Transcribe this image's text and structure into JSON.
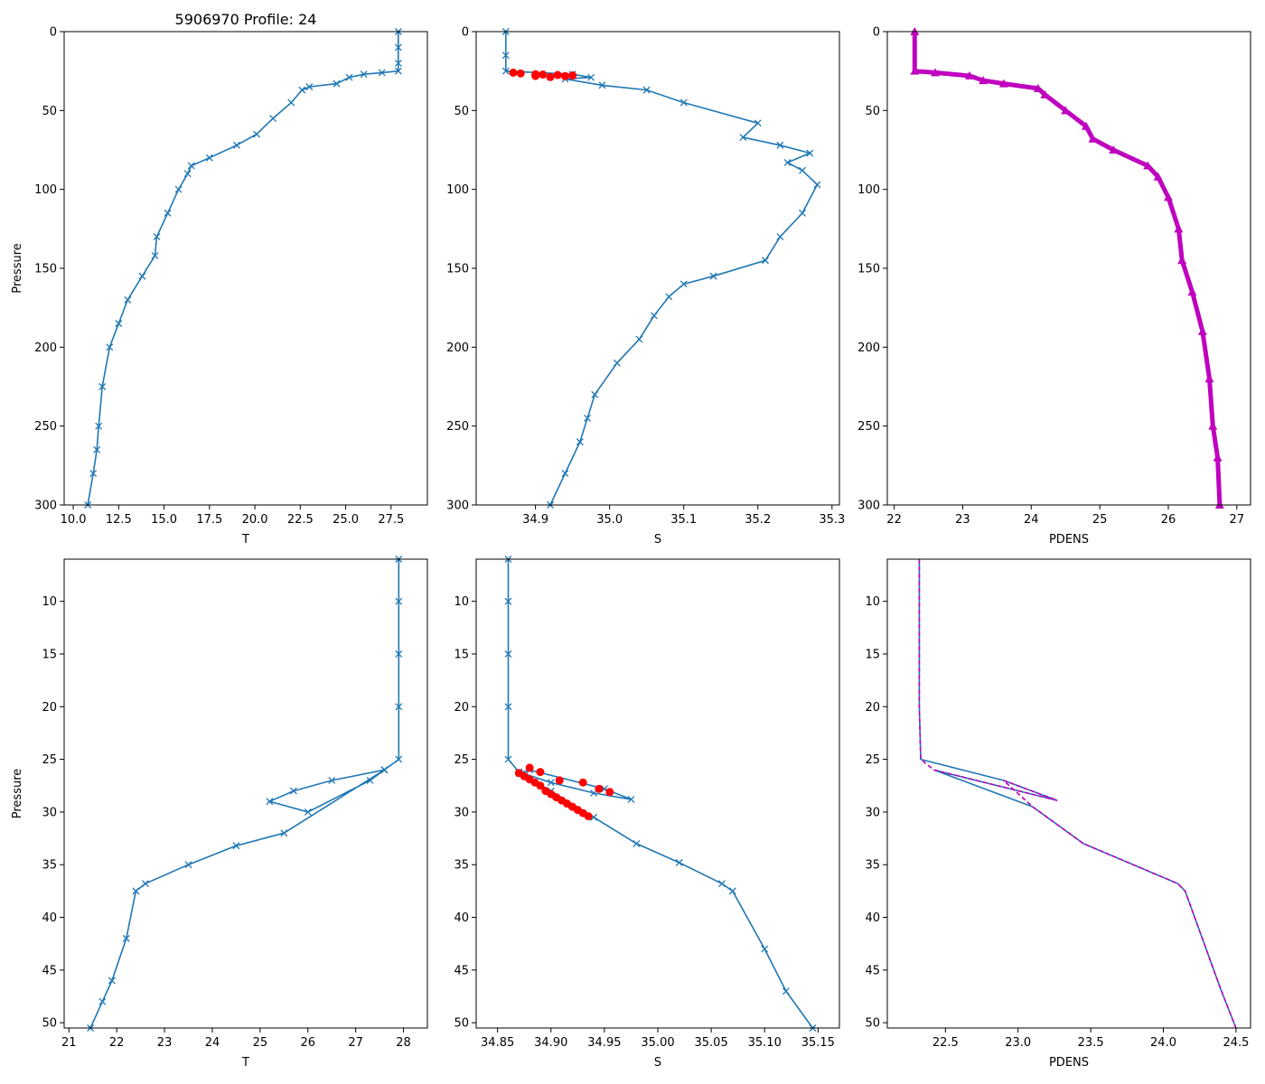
{
  "figure_title": "5906970 Profile: 24",
  "colors": {
    "series": "#1f77b4",
    "flagged": "#ff0000",
    "density": "#bf00bf"
  },
  "chart_data": [
    {
      "id": "top-temperature",
      "type": "line",
      "xlabel": "T",
      "ylabel": "Pressure",
      "title": "5906970 Profile: 24",
      "xlim": [
        9.5,
        29.5
      ],
      "ylim": [
        300,
        0
      ],
      "xticks": [
        10.0,
        12.5,
        15.0,
        17.5,
        20.0,
        22.5,
        25.0,
        27.5
      ],
      "xtick_labels": [
        "10.0",
        "12.5",
        "15.0",
        "17.5",
        "20.0",
        "22.5",
        "25.0",
        "27.5"
      ],
      "yticks": [
        0,
        50,
        100,
        150,
        200,
        250,
        300
      ],
      "ytick_labels": [
        "0",
        "50",
        "100",
        "150",
        "200",
        "250",
        "300"
      ],
      "series": [
        {
          "name": "T",
          "marker": "x",
          "color": "#1f77b4",
          "points": [
            [
              27.9,
              0
            ],
            [
              27.9,
              10
            ],
            [
              27.9,
              20
            ],
            [
              27.9,
              25
            ],
            [
              27.0,
              26
            ],
            [
              26.0,
              27
            ],
            [
              25.2,
              29
            ],
            [
              24.5,
              33
            ],
            [
              23.0,
              35
            ],
            [
              22.6,
              37
            ],
            [
              22.0,
              45
            ],
            [
              21.0,
              55
            ],
            [
              20.1,
              65
            ],
            [
              19.0,
              72
            ],
            [
              17.5,
              80
            ],
            [
              16.5,
              85
            ],
            [
              16.3,
              90
            ],
            [
              15.8,
              100
            ],
            [
              15.2,
              115
            ],
            [
              14.6,
              130
            ],
            [
              14.5,
              142
            ],
            [
              13.8,
              155
            ],
            [
              13.0,
              170
            ],
            [
              12.5,
              185
            ],
            [
              12.0,
              200
            ],
            [
              11.6,
              225
            ],
            [
              11.4,
              250
            ],
            [
              11.3,
              265
            ],
            [
              11.1,
              280
            ],
            [
              10.8,
              300
            ]
          ]
        }
      ]
    },
    {
      "id": "top-salinity",
      "type": "line",
      "xlabel": "S",
      "ylabel": "",
      "xlim": [
        34.82,
        35.31
      ],
      "ylim": [
        300,
        0
      ],
      "xticks": [
        34.9,
        35.0,
        35.1,
        35.2,
        35.3
      ],
      "xtick_labels": [
        "34.9",
        "35.0",
        "35.1",
        "35.2",
        "35.3"
      ],
      "yticks": [
        0,
        50,
        100,
        150,
        200,
        250,
        300
      ],
      "ytick_labels": [
        "0",
        "50",
        "100",
        "150",
        "200",
        "250",
        "300"
      ],
      "series": [
        {
          "name": "S",
          "marker": "x",
          "color": "#1f77b4",
          "points": [
            [
              34.86,
              0
            ],
            [
              34.86,
              15
            ],
            [
              34.86,
              25
            ],
            [
              34.95,
              27
            ],
            [
              34.975,
              29
            ],
            [
              34.94,
              30
            ],
            [
              34.99,
              34
            ],
            [
              35.05,
              37
            ],
            [
              35.1,
              45
            ],
            [
              35.2,
              58
            ],
            [
              35.18,
              67
            ],
            [
              35.23,
              72
            ],
            [
              35.27,
              77
            ],
            [
              35.24,
              83
            ],
            [
              35.26,
              88
            ],
            [
              35.28,
              97
            ],
            [
              35.26,
              115
            ],
            [
              35.23,
              130
            ],
            [
              35.21,
              145
            ],
            [
              35.14,
              155
            ],
            [
              35.1,
              160
            ],
            [
              35.08,
              168
            ],
            [
              35.06,
              180
            ],
            [
              35.04,
              195
            ],
            [
              35.01,
              210
            ],
            [
              34.98,
              230
            ],
            [
              34.97,
              245
            ],
            [
              34.96,
              260
            ],
            [
              34.94,
              280
            ],
            [
              34.92,
              300
            ]
          ]
        },
        {
          "name": "flagged S",
          "marker": "o",
          "color": "#ff0000",
          "points": [
            [
              34.87,
              26
            ],
            [
              34.88,
              26.5
            ],
            [
              34.9,
              27
            ],
            [
              34.91,
              27.2
            ],
            [
              34.93,
              27.5
            ],
            [
              34.95,
              27.8
            ],
            [
              34.94,
              28.2
            ],
            [
              34.92,
              28.8
            ],
            [
              34.9,
              28.1
            ]
          ]
        }
      ]
    },
    {
      "id": "top-density",
      "type": "line",
      "xlabel": "PDENS",
      "ylabel": "",
      "xlim": [
        21.9,
        27.2
      ],
      "ylim": [
        300,
        0
      ],
      "xticks": [
        22,
        23,
        24,
        25,
        26,
        27
      ],
      "xtick_labels": [
        "22",
        "23",
        "24",
        "25",
        "26",
        "27"
      ],
      "yticks": [
        0,
        50,
        100,
        150,
        200,
        250,
        300
      ],
      "ytick_labels": [
        "0",
        "50",
        "100",
        "150",
        "200",
        "250",
        "300"
      ],
      "series": [
        {
          "name": "PDENS",
          "marker": "^",
          "color": "#bf00bf",
          "points": [
            [
              22.3,
              0
            ],
            [
              22.3,
              25
            ],
            [
              22.6,
              26
            ],
            [
              23.1,
              28
            ],
            [
              23.3,
              31
            ],
            [
              23.6,
              33
            ],
            [
              24.1,
              36
            ],
            [
              24.2,
              40
            ],
            [
              24.5,
              50
            ],
            [
              24.8,
              60
            ],
            [
              24.9,
              68
            ],
            [
              25.2,
              75
            ],
            [
              25.7,
              85
            ],
            [
              25.85,
              92
            ],
            [
              26.0,
              105
            ],
            [
              26.15,
              125
            ],
            [
              26.2,
              145
            ],
            [
              26.35,
              165
            ],
            [
              26.5,
              190
            ],
            [
              26.6,
              220
            ],
            [
              26.65,
              250
            ],
            [
              26.72,
              270
            ],
            [
              26.75,
              300
            ]
          ]
        }
      ]
    },
    {
      "id": "bottom-temperature",
      "type": "line",
      "xlabel": "T",
      "ylabel": "Pressure",
      "xlim": [
        20.9,
        28.5
      ],
      "ylim": [
        50.5,
        6
      ],
      "xticks": [
        21,
        22,
        23,
        24,
        25,
        26,
        27,
        28
      ],
      "xtick_labels": [
        "21",
        "22",
        "23",
        "24",
        "25",
        "26",
        "27",
        "28"
      ],
      "yticks": [
        10,
        15,
        20,
        25,
        30,
        35,
        40,
        45,
        50
      ],
      "ytick_labels": [
        "10",
        "15",
        "20",
        "25",
        "30",
        "35",
        "40",
        "45",
        "50"
      ],
      "series": [
        {
          "name": "T",
          "marker": "x",
          "color": "#1f77b4",
          "points": [
            [
              27.9,
              6
            ],
            [
              27.9,
              10
            ],
            [
              27.9,
              15
            ],
            [
              27.9,
              20
            ],
            [
              27.9,
              25
            ],
            [
              27.6,
              26
            ],
            [
              26.5,
              27
            ],
            [
              25.7,
              28
            ],
            [
              25.2,
              29
            ],
            [
              26.0,
              30
            ],
            [
              27.3,
              27
            ],
            [
              27.6,
              26
            ],
            [
              25.5,
              32
            ],
            [
              24.5,
              33.2
            ],
            [
              23.5,
              35
            ],
            [
              22.6,
              36.8
            ],
            [
              22.4,
              37.5
            ],
            [
              22.2,
              42
            ],
            [
              21.9,
              46
            ],
            [
              21.7,
              48
            ],
            [
              21.45,
              50.5
            ]
          ]
        }
      ]
    },
    {
      "id": "bottom-salinity",
      "type": "line",
      "xlabel": "S",
      "ylabel": "",
      "xlim": [
        34.83,
        35.17
      ],
      "ylim": [
        50.5,
        6
      ],
      "xticks": [
        34.85,
        34.9,
        34.95,
        35.0,
        35.05,
        35.1,
        35.15
      ],
      "xtick_labels": [
        "34.85",
        "34.90",
        "34.95",
        "35.00",
        "35.05",
        "35.10",
        "35.15"
      ],
      "yticks": [
        10,
        15,
        20,
        25,
        30,
        35,
        40,
        45,
        50
      ],
      "ytick_labels": [
        "10",
        "15",
        "20",
        "25",
        "30",
        "35",
        "40",
        "45",
        "50"
      ],
      "series": [
        {
          "name": "S",
          "marker": "x",
          "color": "#1f77b4",
          "points": [
            [
              34.86,
              6
            ],
            [
              34.86,
              10
            ],
            [
              34.86,
              15
            ],
            [
              34.86,
              20
            ],
            [
              34.86,
              25
            ],
            [
              34.87,
              26.2
            ],
            [
              34.9,
              27.2
            ],
            [
              34.94,
              28.2
            ],
            [
              34.975,
              28.8
            ],
            [
              34.95,
              27.8
            ],
            [
              34.88,
              26
            ],
            [
              34.87,
              26.3
            ],
            [
              34.9,
              28
            ],
            [
              34.94,
              30.5
            ],
            [
              34.98,
              33
            ],
            [
              35.02,
              34.8
            ],
            [
              35.06,
              36.8
            ],
            [
              35.07,
              37.5
            ],
            [
              35.1,
              43
            ],
            [
              35.12,
              47
            ],
            [
              35.145,
              50.5
            ]
          ]
        },
        {
          "name": "flagged S",
          "marker": "o",
          "color": "#ff0000",
          "points": [
            [
              34.88,
              25.8
            ],
            [
              34.89,
              26.2
            ],
            [
              34.908,
              27
            ],
            [
              34.93,
              27.2
            ],
            [
              34.945,
              27.8
            ],
            [
              34.955,
              28.1
            ],
            [
              34.87,
              26.3
            ],
            [
              34.875,
              26.6
            ],
            [
              34.88,
              26.9
            ],
            [
              34.885,
              27.2
            ],
            [
              34.89,
              27.5
            ],
            [
              34.895,
              28
            ],
            [
              34.9,
              28.3
            ],
            [
              34.905,
              28.6
            ],
            [
              34.91,
              28.9
            ],
            [
              34.915,
              29.2
            ],
            [
              34.92,
              29.5
            ],
            [
              34.925,
              29.8
            ],
            [
              34.93,
              30.1
            ],
            [
              34.935,
              30.4
            ]
          ]
        }
      ]
    },
    {
      "id": "bottom-density",
      "type": "line",
      "xlabel": "PDENS",
      "ylabel": "",
      "xlim": [
        22.1,
        24.6
      ],
      "ylim": [
        50.5,
        6
      ],
      "xticks": [
        22.5,
        23.0,
        23.5,
        24.0,
        24.5
      ],
      "xtick_labels": [
        "22.5",
        "23.0",
        "23.5",
        "24.0",
        "24.5"
      ],
      "yticks": [
        10,
        15,
        20,
        25,
        30,
        35,
        40,
        45,
        50
      ],
      "ytick_labels": [
        "10",
        "15",
        "20",
        "25",
        "30",
        "35",
        "40",
        "45",
        "50"
      ],
      "series": [
        {
          "name": "PDENS",
          "marker": "none",
          "color": "#1f77b4",
          "points": [
            [
              22.32,
              6
            ],
            [
              22.32,
              10
            ],
            [
              22.32,
              20
            ],
            [
              22.33,
              25
            ],
            [
              22.9,
              27
            ],
            [
              23.27,
              28.9
            ],
            [
              22.42,
              26
            ],
            [
              23.1,
              29.5
            ],
            [
              23.45,
              33
            ],
            [
              24.1,
              36.8
            ],
            [
              24.15,
              37.5
            ],
            [
              24.4,
              47
            ],
            [
              24.5,
              50.5
            ]
          ]
        },
        {
          "name": "PDENS overlay",
          "marker": "none",
          "color": "#bf00bf",
          "dashed": true,
          "points": [
            [
              22.32,
              6
            ],
            [
              22.32,
              10
            ],
            [
              22.32,
              20
            ],
            [
              22.33,
              25
            ],
            [
              22.42,
              26
            ],
            [
              23.27,
              28.9
            ],
            [
              22.9,
              27
            ],
            [
              23.1,
              29.5
            ],
            [
              23.45,
              33
            ],
            [
              24.1,
              36.8
            ],
            [
              24.15,
              37.5
            ],
            [
              24.4,
              47
            ],
            [
              24.5,
              50.5
            ]
          ]
        }
      ]
    }
  ]
}
